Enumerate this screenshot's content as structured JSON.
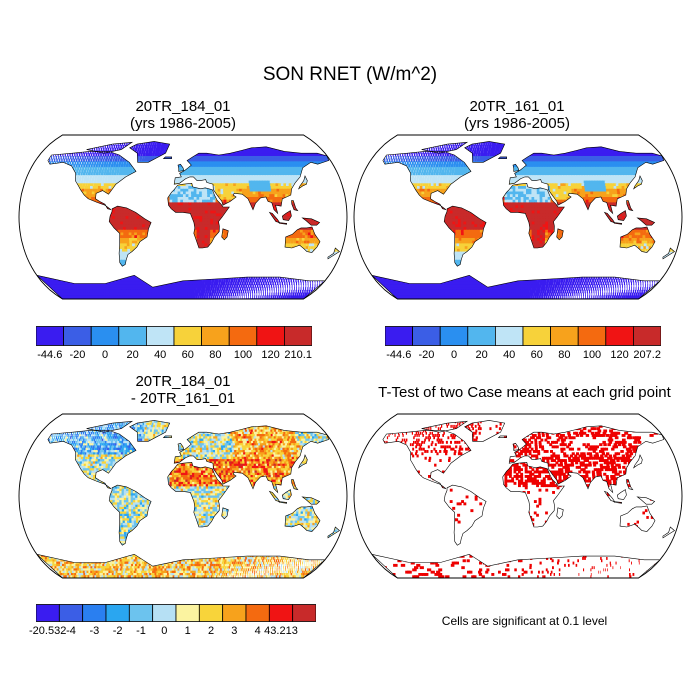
{
  "main_title": "SON RNET (W/m^2)",
  "panels": [
    {
      "title_line1": "20TR_184_01",
      "title_line2": "(yrs 1986-2005)",
      "style": "climate"
    },
    {
      "title_line1": "20TR_161_01",
      "title_line2": "(yrs 1986-2005)",
      "style": "climate"
    },
    {
      "title_line1": "20TR_184_01",
      "title_line2": "- 20TR_161_01",
      "style": "difference"
    },
    {
      "title_line1": "T-Test of two Case means at each grid point",
      "title_line2": "",
      "style": "ttest"
    }
  ],
  "colorbars": [
    {
      "labels": [
        "-44.6",
        "-20",
        "0",
        "20",
        "40",
        "60",
        "80",
        "100",
        "120",
        "210.1"
      ],
      "colors": [
        "#3a1cf0",
        "#3b5ee6",
        "#2a8ff0",
        "#52b6ee",
        "#bfe4f6",
        "#f7d23a",
        "#f7a21c",
        "#f46a10",
        "#f01414",
        "#c82a2a"
      ]
    },
    {
      "labels": [
        "-44.6",
        "-20",
        "0",
        "20",
        "40",
        "60",
        "80",
        "100",
        "120",
        "207.2"
      ],
      "colors": [
        "#3a1cf0",
        "#3b5ee6",
        "#2a8ff0",
        "#52b6ee",
        "#bfe4f6",
        "#f7d23a",
        "#f7a21c",
        "#f46a10",
        "#f01414",
        "#c82a2a"
      ]
    },
    {
      "labels": [
        "-20.532",
        "-4",
        "-3",
        "-2",
        "-1",
        "0",
        "1",
        "2",
        "3",
        "4",
        "43.213"
      ],
      "colors": [
        "#3a1cf0",
        "#3b5ee6",
        "#2a7ff0",
        "#2aa6f0",
        "#6cc3ee",
        "#b6e0f4",
        "#fbf3a0",
        "#f8d43a",
        "#f7a21c",
        "#f46a10",
        "#f01414",
        "#c82a2a"
      ]
    }
  ],
  "significance_note": "Cells are significant at 0.1 level",
  "ttest_color": "#ee0000"
}
